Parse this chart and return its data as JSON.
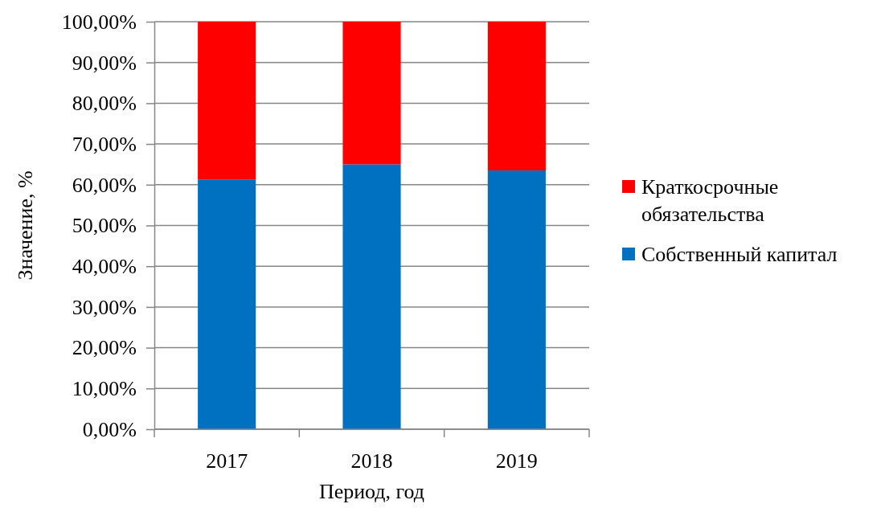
{
  "chart_data": {
    "type": "bar",
    "stacked": true,
    "xlabel": "Период, год",
    "ylabel": "Значение, %",
    "categories": [
      "2017",
      "2018",
      "2019"
    ],
    "series": [
      {
        "name": "Собственный капитал",
        "color": "#0070c0",
        "values": [
          61.3,
          65.0,
          63.5
        ]
      },
      {
        "name": "Краткосрочные обязательства",
        "color": "#ff0000",
        "values": [
          38.7,
          35.0,
          36.5
        ]
      }
    ],
    "ylim": [
      0,
      100
    ],
    "yticks": [
      {
        "value": 0,
        "label": "0,00%"
      },
      {
        "value": 10,
        "label": "10,00%"
      },
      {
        "value": 20,
        "label": "20,00%"
      },
      {
        "value": 30,
        "label": "30,00%"
      },
      {
        "value": 40,
        "label": "40,00%"
      },
      {
        "value": 50,
        "label": "50,00%"
      },
      {
        "value": 60,
        "label": "60,00%"
      },
      {
        "value": 70,
        "label": "70,00%"
      },
      {
        "value": 80,
        "label": "80,00%"
      },
      {
        "value": 90,
        "label": "90,00%"
      },
      {
        "value": 100,
        "label": "100,00%"
      }
    ],
    "grid": "y",
    "legend": "right"
  }
}
